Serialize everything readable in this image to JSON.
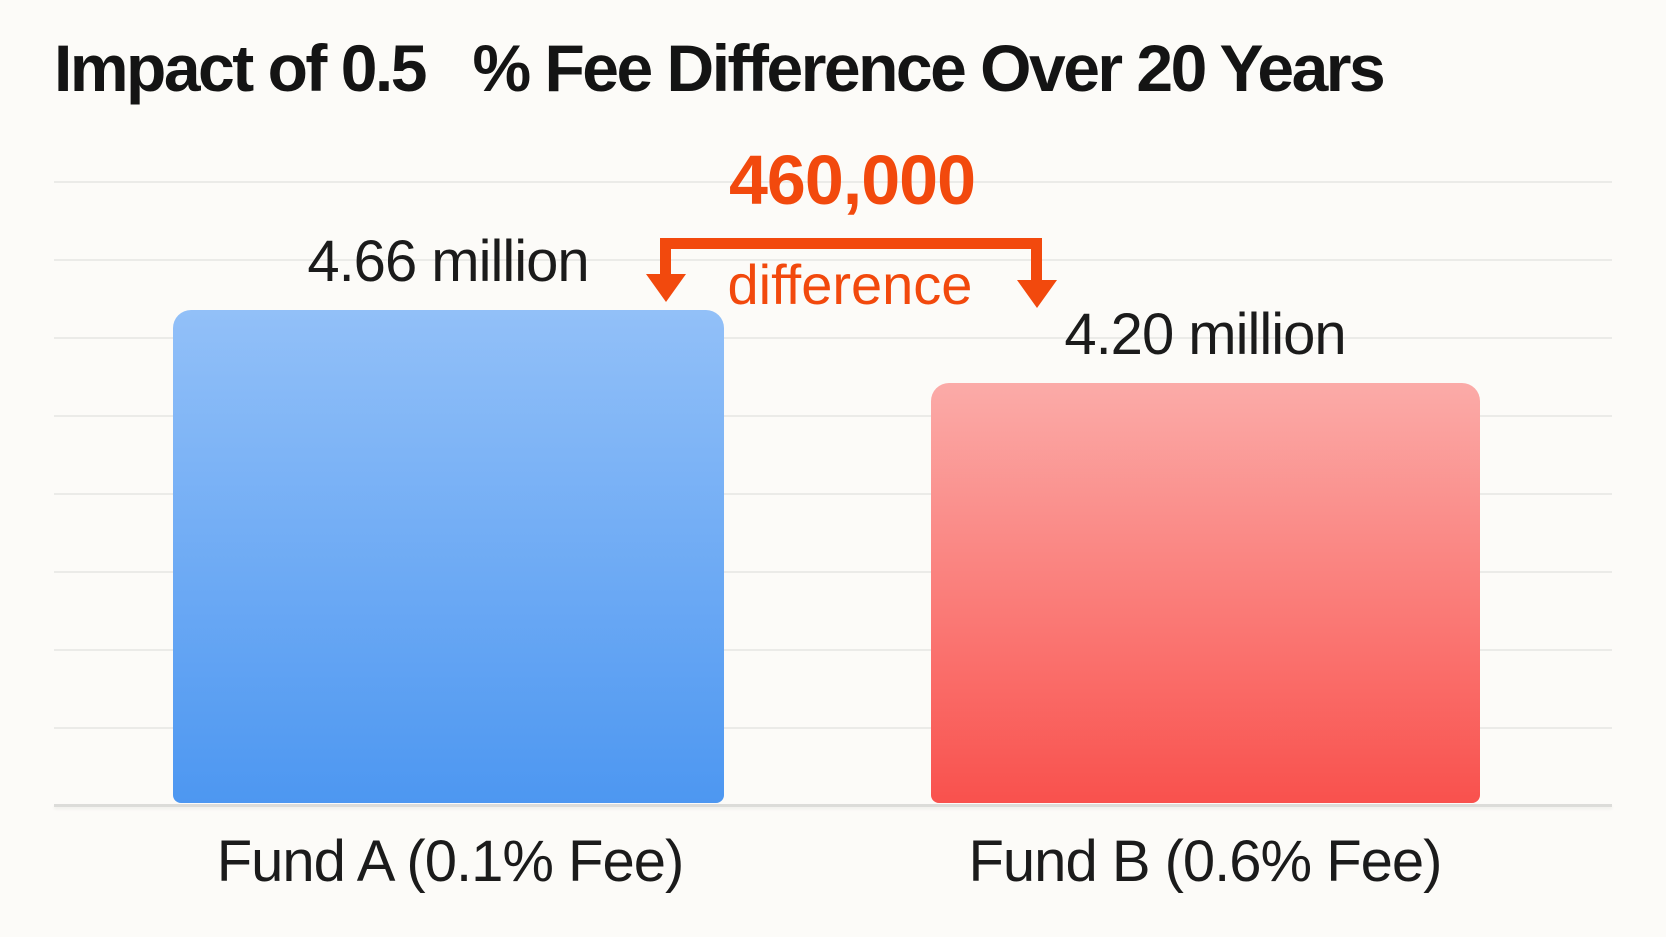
{
  "chart_data": {
    "type": "bar",
    "title": "Impact of 0.5   % Fee Difference Over 20 Years",
    "categories": [
      "Fund A (0.1% Fee)",
      "Fund B (0.6% Fee)"
    ],
    "values": [
      4660000,
      4200000
    ],
    "value_labels": [
      "4.66 million",
      "4.20 million"
    ],
    "annotation": {
      "value": "460,000",
      "label": "difference"
    },
    "grid": true,
    "gridline_count": 8,
    "value_axis_visible": false,
    "legend": "none"
  },
  "colors": {
    "accent_orange": "#F2490D",
    "bar_a_top": "#92C0F8",
    "bar_a_bottom": "#4D97F1",
    "bar_b_top": "#FBABA8",
    "bar_b_bottom": "#F9514D",
    "text": "#1B1B1B",
    "gridline": "#EBEBE8",
    "axis_line": "#DCDCD9",
    "background": "#FCFBF8"
  }
}
